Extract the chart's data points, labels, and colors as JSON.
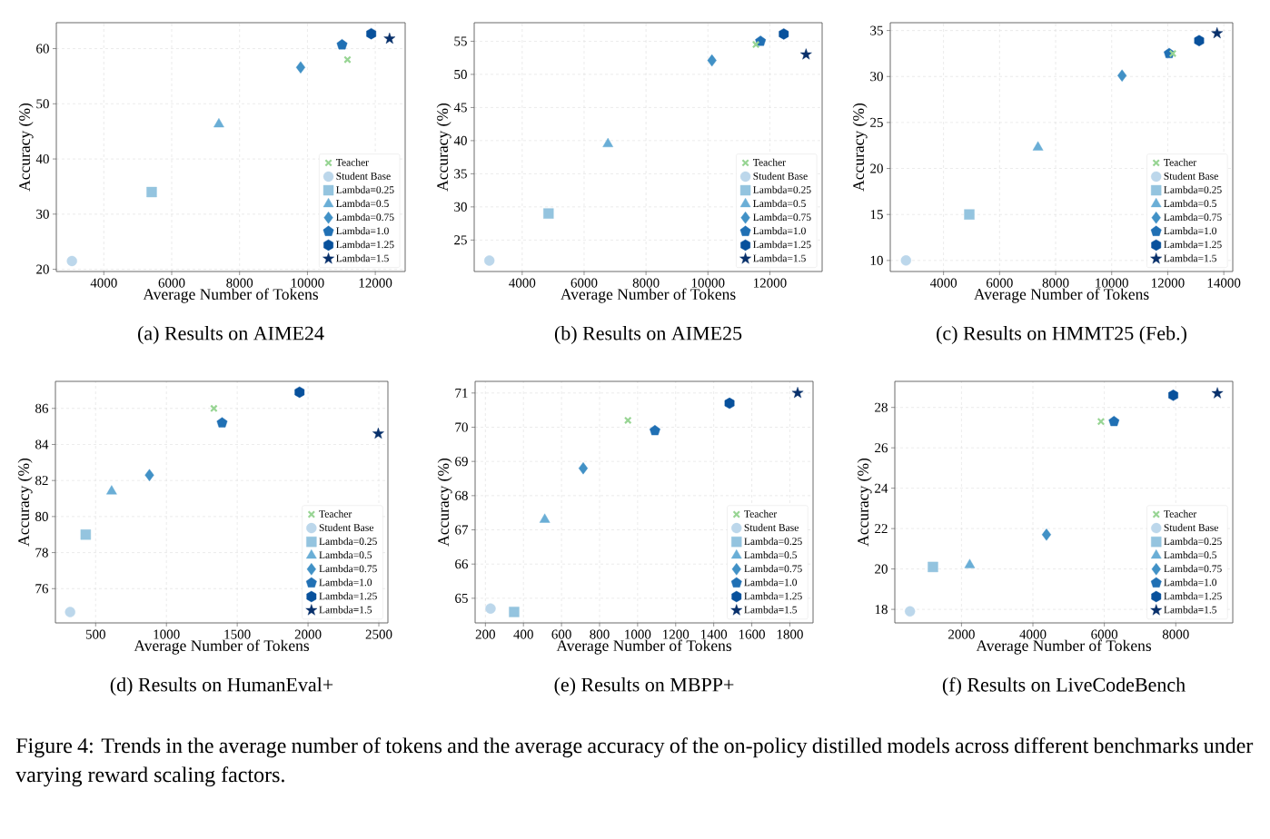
{
  "chart_data": [
    {
      "type": "scatter",
      "title": "(a) Results on AIME24",
      "xlabel": "Average Number of Tokens",
      "ylabel": "Accuracy (%)",
      "xlim": [
        2600,
        12880
      ],
      "ylim": [
        19.6,
        64.7
      ],
      "xticks": [
        4000,
        6000,
        8000,
        10000,
        12000
      ],
      "yticks": [
        20,
        30,
        40,
        50,
        60
      ],
      "grid": true,
      "legend": "bottom right",
      "annotations": [
        "Figure 4: Trends in the average number of tokens and the average accuracy of the on-policy distilled models across different benchmarks under varying reward scaling factors."
      ],
      "series": [
        {
          "name": "Teacher",
          "color": "#98d594",
          "marker": "cross",
          "x": [
            11180
          ],
          "values": [
            58.0
          ]
        },
        {
          "name": "Student Base",
          "color": "#bcd7eb",
          "marker": "circle",
          "x": [
            3060
          ],
          "values": [
            21.5
          ]
        },
        {
          "name": "Lambda=0.25",
          "color": "#94c4df",
          "marker": "square",
          "x": [
            5410
          ],
          "values": [
            34.0
          ]
        },
        {
          "name": "Lambda=0.5",
          "color": "#6aaed6",
          "marker": "triangle",
          "x": [
            7390
          ],
          "values": [
            46.3
          ]
        },
        {
          "name": "Lambda=0.75",
          "color": "#4191c6",
          "marker": "diamond",
          "x": [
            9800
          ],
          "values": [
            56.6
          ]
        },
        {
          "name": "Lambda=1.0",
          "color": "#2070b4",
          "x": [
            11020
          ],
          "values": [
            60.7
          ]
        },
        {
          "name": "Lambda=1.25",
          "color": "#08519c",
          "x": [
            11880
          ],
          "values": [
            62.7
          ]
        },
        {
          "name": "Lambda=1.5",
          "color": "#08306b",
          "marker": "star",
          "x": [
            12420
          ],
          "values": [
            61.8
          ]
        }
      ]
    },
    {
      "type": "scatter",
      "title": "(b) Results on AIME25",
      "xlabel": "Average Number of Tokens",
      "ylabel": "Accuracy (%)",
      "xlim": [
        2450,
        13690
      ],
      "ylim": [
        20.25,
        57.8
      ],
      "xticks": [
        4000,
        6000,
        8000,
        10000,
        12000
      ],
      "yticks": [
        25,
        30,
        35,
        40,
        45,
        50,
        55
      ],
      "grid": true,
      "legend": "bottom right",
      "series": [
        {
          "name": "Teacher",
          "color": "#98d594",
          "marker": "cross",
          "x": [
            11550
          ],
          "values": [
            54.5
          ]
        },
        {
          "name": "Student Base",
          "color": "#bcd7eb",
          "marker": "circle",
          "x": [
            2940
          ],
          "values": [
            21.9
          ]
        },
        {
          "name": "Lambda=0.25",
          "color": "#94c4df",
          "marker": "square",
          "x": [
            4850
          ],
          "values": [
            29.0
          ]
        },
        {
          "name": "Lambda=0.5",
          "color": "#6aaed6",
          "marker": "triangle",
          "x": [
            6770
          ],
          "values": [
            39.5
          ]
        },
        {
          "name": "Lambda=0.75",
          "color": "#4191c6",
          "marker": "diamond",
          "x": [
            10130
          ],
          "values": [
            52.1
          ]
        },
        {
          "name": "Lambda=1.0",
          "color": "#2070b4",
          "x": [
            11700
          ],
          "values": [
            55.0
          ]
        },
        {
          "name": "Lambda=1.25",
          "color": "#08519c",
          "x": [
            12450
          ],
          "values": [
            56.1
          ]
        },
        {
          "name": "Lambda=1.5",
          "color": "#08306b",
          "marker": "star",
          "x": [
            13170
          ],
          "values": [
            53.0
          ]
        }
      ]
    },
    {
      "type": "scatter",
      "title": "(c) Results on HMMT25 (Feb.)",
      "xlabel": "Average Number of Tokens",
      "ylabel": "Accuracy (%)",
      "xlim": [
        2100,
        14320
      ],
      "ylim": [
        8.8,
        35.85
      ],
      "xticks": [
        4000,
        6000,
        8000,
        10000,
        12000,
        14000
      ],
      "yticks": [
        10,
        15,
        20,
        25,
        30,
        35
      ],
      "grid": true,
      "legend": "bottom right",
      "series": [
        {
          "name": "Teacher",
          "color": "#98d594",
          "marker": "cross",
          "x": [
            12180
          ],
          "values": [
            32.5
          ]
        },
        {
          "name": "Student Base",
          "color": "#bcd7eb",
          "marker": "circle",
          "x": [
            2660
          ],
          "values": [
            10.0
          ]
        },
        {
          "name": "Lambda=0.25",
          "color": "#94c4df",
          "marker": "square",
          "x": [
            4920
          ],
          "values": [
            15.0
          ]
        },
        {
          "name": "Lambda=0.5",
          "color": "#6aaed6",
          "marker": "triangle",
          "x": [
            7370
          ],
          "values": [
            22.3
          ]
        },
        {
          "name": "Lambda=0.75",
          "color": "#4191c6",
          "marker": "diamond",
          "x": [
            10370
          ],
          "values": [
            30.1
          ]
        },
        {
          "name": "Lambda=1.0",
          "color": "#2070b4",
          "x": [
            12050
          ],
          "values": [
            32.5
          ]
        },
        {
          "name": "Lambda=1.25",
          "color": "#08519c",
          "x": [
            13120
          ],
          "values": [
            33.9
          ]
        },
        {
          "name": "Lambda=1.5",
          "color": "#08306b",
          "marker": "star",
          "x": [
            13760
          ],
          "values": [
            34.7
          ]
        }
      ]
    },
    {
      "type": "scatter",
      "title": "(d) Results on HumanEval+",
      "xlabel": "Average Number of Tokens",
      "ylabel": "Accuracy (%)",
      "xlim": [
        216,
        2564
      ],
      "ylim": [
        74.1,
        87.5
      ],
      "xticks": [
        500,
        1000,
        1500,
        2000,
        2500
      ],
      "yticks": [
        76,
        78,
        80,
        82,
        84,
        86
      ],
      "grid": true,
      "legend": "bottom right",
      "series": [
        {
          "name": "Teacher",
          "color": "#98d594",
          "marker": "cross",
          "x": [
            1335
          ],
          "values": [
            86.0
          ]
        },
        {
          "name": "Student Base",
          "color": "#bcd7eb",
          "marker": "circle",
          "x": [
            320
          ],
          "values": [
            74.7
          ]
        },
        {
          "name": "Lambda=0.25",
          "color": "#94c4df",
          "marker": "square",
          "x": [
            430
          ],
          "values": [
            79.0
          ]
        },
        {
          "name": "Lambda=0.5",
          "color": "#6aaed6",
          "marker": "triangle",
          "x": [
            613
          ],
          "values": [
            81.4
          ]
        },
        {
          "name": "Lambda=0.75",
          "color": "#4191c6",
          "marker": "diamond",
          "x": [
            880
          ],
          "values": [
            82.3
          ]
        },
        {
          "name": "Lambda=1.0",
          "color": "#2070b4",
          "x": [
            1393
          ],
          "values": [
            85.2
          ]
        },
        {
          "name": "Lambda=1.25",
          "color": "#08519c",
          "x": [
            1940
          ],
          "values": [
            86.9
          ]
        },
        {
          "name": "Lambda=1.5",
          "color": "#08306b",
          "marker": "star",
          "x": [
            2496
          ],
          "values": [
            84.6
          ]
        }
      ]
    },
    {
      "type": "scatter",
      "title": "(e) Results on MBPP+",
      "xlabel": "Average Number of Tokens",
      "ylabel": "Accuracy (%)",
      "xlim": [
        146,
        1922
      ],
      "ylim": [
        64.28,
        71.34
      ],
      "xticks": [
        200,
        400,
        600,
        800,
        1000,
        1200,
        1400,
        1600,
        1800
      ],
      "yticks": [
        65,
        66,
        67,
        68,
        69,
        70,
        71
      ],
      "grid": true,
      "legend": "bottom right",
      "series": [
        {
          "name": "Teacher",
          "color": "#98d594",
          "marker": "cross",
          "x": [
            949
          ],
          "values": [
            70.2
          ]
        },
        {
          "name": "Student Base",
          "color": "#bcd7eb",
          "marker": "circle",
          "x": [
            227
          ],
          "values": [
            64.7
          ]
        },
        {
          "name": "Lambda=0.25",
          "color": "#94c4df",
          "marker": "square",
          "x": [
            351
          ],
          "values": [
            64.6
          ]
        },
        {
          "name": "Lambda=0.5",
          "color": "#6aaed6",
          "marker": "triangle",
          "x": [
            512
          ],
          "values": [
            67.3
          ]
        },
        {
          "name": "Lambda=0.75",
          "color": "#4191c6",
          "marker": "diamond",
          "x": [
            714
          ],
          "values": [
            68.8
          ]
        },
        {
          "name": "Lambda=1.0",
          "color": "#2070b4",
          "x": [
            1091
          ],
          "values": [
            69.9
          ]
        },
        {
          "name": "Lambda=1.25",
          "color": "#08519c",
          "x": [
            1483
          ],
          "values": [
            70.7
          ]
        },
        {
          "name": "Lambda=1.5",
          "color": "#08306b",
          "marker": "star",
          "x": [
            1841
          ],
          "values": [
            71.0
          ]
        }
      ]
    },
    {
      "type": "scatter",
      "title": "(f) Results on LiveCodeBench",
      "xlabel": "Average Number of Tokens",
      "ylabel": "Accuracy (%)",
      "xlim": [
        133,
        9596
      ],
      "ylim": [
        17.33,
        29.29
      ],
      "xticks": [
        2000,
        4000,
        6000,
        8000
      ],
      "yticks": [
        18,
        20,
        22,
        24,
        26,
        28
      ],
      "grid": true,
      "legend": "bottom right",
      "series": [
        {
          "name": "Teacher",
          "color": "#98d594",
          "marker": "cross",
          "x": [
            5905
          ],
          "values": [
            27.3
          ]
        },
        {
          "name": "Student Base",
          "color": "#bcd7eb",
          "marker": "circle",
          "x": [
            557
          ],
          "values": [
            17.9
          ]
        },
        {
          "name": "Lambda=0.25",
          "color": "#94c4df",
          "marker": "square",
          "x": [
            1200
          ],
          "values": [
            20.1
          ]
        },
        {
          "name": "Lambda=0.5",
          "color": "#6aaed6",
          "marker": "triangle",
          "x": [
            2230
          ],
          "values": [
            20.2
          ]
        },
        {
          "name": "Lambda=0.75",
          "color": "#4191c6",
          "marker": "diamond",
          "x": [
            4380
          ],
          "values": [
            21.7
          ]
        },
        {
          "name": "Lambda=1.0",
          "color": "#2070b4",
          "x": [
            6270
          ],
          "values": [
            27.3
          ]
        },
        {
          "name": "Lambda=1.25",
          "color": "#08519c",
          "x": [
            7930
          ],
          "values": [
            28.6
          ]
        },
        {
          "name": "Lambda=1.5",
          "color": "#08306b",
          "marker": "star",
          "x": [
            9165
          ],
          "values": [
            28.7
          ]
        }
      ]
    }
  ]
}
